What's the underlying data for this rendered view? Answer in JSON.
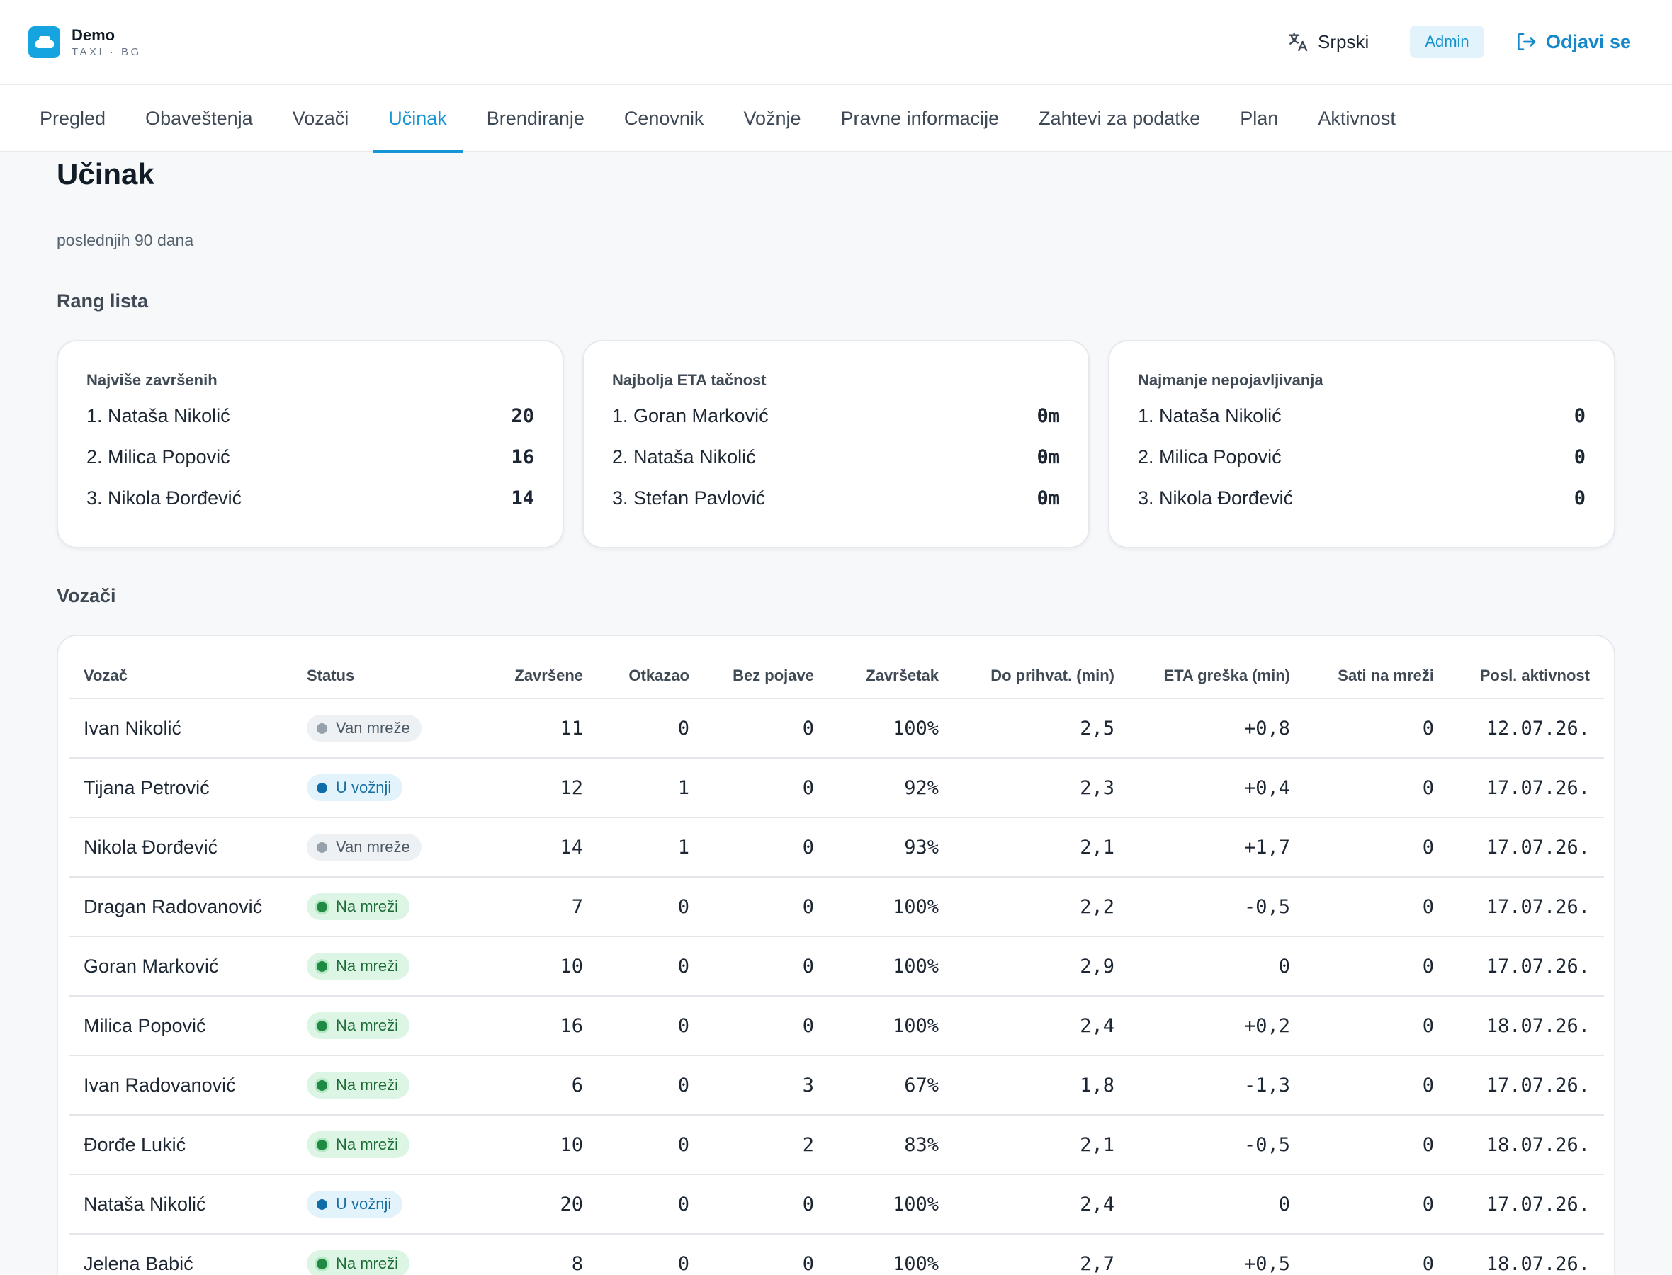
{
  "brand": {
    "name": "Demo",
    "sub": "TAXI · BG"
  },
  "header": {
    "language": "Srpski",
    "role_badge": "Admin",
    "logout_label": "Odjavi se"
  },
  "tabs": [
    {
      "label": "Pregled"
    },
    {
      "label": "Obaveštenja"
    },
    {
      "label": "Vozači"
    },
    {
      "label": "Učinak",
      "active": true
    },
    {
      "label": "Brendiranje"
    },
    {
      "label": "Cenovnik"
    },
    {
      "label": "Vožnje"
    },
    {
      "label": "Pravne informacije"
    },
    {
      "label": "Zahtevi za podatke"
    },
    {
      "label": "Plan"
    },
    {
      "label": "Aktivnost"
    }
  ],
  "page": {
    "title": "Učinak",
    "subtitle": "poslednjih 90 dana",
    "leaderboard_heading": "Rang lista",
    "drivers_heading": "Vozači"
  },
  "leaderboards": [
    {
      "title": "Najviše završenih",
      "rows": [
        {
          "name": "1. Nataša Nikolić",
          "value": "20"
        },
        {
          "name": "2. Milica Popović",
          "value": "16"
        },
        {
          "name": "3. Nikola Đorđević",
          "value": "14"
        }
      ]
    },
    {
      "title": "Najbolja ETA tačnost",
      "rows": [
        {
          "name": "1. Goran Marković",
          "value": "0m"
        },
        {
          "name": "2. Nataša Nikolić",
          "value": "0m"
        },
        {
          "name": "3. Stefan Pavlović",
          "value": "0m"
        }
      ]
    },
    {
      "title": "Najmanje nepojavljivanja",
      "rows": [
        {
          "name": "1. Nataša Nikolić",
          "value": "0"
        },
        {
          "name": "2. Milica Popović",
          "value": "0"
        },
        {
          "name": "3. Nikola Đorđević",
          "value": "0"
        }
      ]
    }
  ],
  "table": {
    "columns": [
      "Vozač",
      "Status",
      "Završene",
      "Otkazao",
      "Bez pojave",
      "Završetak",
      "Do prihvat. (min)",
      "ETA greška (min)",
      "Sati na mreži",
      "Posl. aktivnost"
    ],
    "status_colors": {
      "offline": "#97a1ab",
      "in_ride": "#0f6ea8",
      "online": "#1f8a43"
    },
    "rows": [
      {
        "driver": "Ivan Nikolić",
        "status": "Van mreže",
        "status_kind": "offline",
        "completed": "11",
        "cancelled": "0",
        "no_show": "0",
        "completion": "100%",
        "accept_min": "2,5",
        "eta_err": "+0,8",
        "hours": "0",
        "last": "12.07.26."
      },
      {
        "driver": "Tijana Petrović",
        "status": "U vožnji",
        "status_kind": "in_ride",
        "completed": "12",
        "cancelled": "1",
        "no_show": "0",
        "completion": "92%",
        "accept_min": "2,3",
        "eta_err": "+0,4",
        "hours": "0",
        "last": "17.07.26."
      },
      {
        "driver": "Nikola Đorđević",
        "status": "Van mreže",
        "status_kind": "offline",
        "completed": "14",
        "cancelled": "1",
        "no_show": "0",
        "completion": "93%",
        "accept_min": "2,1",
        "eta_err": "+1,7",
        "hours": "0",
        "last": "17.07.26."
      },
      {
        "driver": "Dragan Radovanović",
        "status": "Na mreži",
        "status_kind": "online",
        "completed": "7",
        "cancelled": "0",
        "no_show": "0",
        "completion": "100%",
        "accept_min": "2,2",
        "eta_err": "-0,5",
        "hours": "0",
        "last": "17.07.26."
      },
      {
        "driver": "Goran Marković",
        "status": "Na mreži",
        "status_kind": "online",
        "completed": "10",
        "cancelled": "0",
        "no_show": "0",
        "completion": "100%",
        "accept_min": "2,9",
        "eta_err": "0",
        "hours": "0",
        "last": "17.07.26."
      },
      {
        "driver": "Milica Popović",
        "status": "Na mreži",
        "status_kind": "online",
        "completed": "16",
        "cancelled": "0",
        "no_show": "0",
        "completion": "100%",
        "accept_min": "2,4",
        "eta_err": "+0,2",
        "hours": "0",
        "last": "18.07.26."
      },
      {
        "driver": "Ivan Radovanović",
        "status": "Na mreži",
        "status_kind": "online",
        "completed": "6",
        "cancelled": "0",
        "no_show": "3",
        "completion": "67%",
        "accept_min": "1,8",
        "eta_err": "-1,3",
        "hours": "0",
        "last": "17.07.26."
      },
      {
        "driver": "Đorđe Lukić",
        "status": "Na mreži",
        "status_kind": "online",
        "completed": "10",
        "cancelled": "0",
        "no_show": "2",
        "completion": "83%",
        "accept_min": "2,1",
        "eta_err": "-0,5",
        "hours": "0",
        "last": "18.07.26."
      },
      {
        "driver": "Nataša Nikolić",
        "status": "U vožnji",
        "status_kind": "in_ride",
        "completed": "20",
        "cancelled": "0",
        "no_show": "0",
        "completion": "100%",
        "accept_min": "2,4",
        "eta_err": "0",
        "hours": "0",
        "last": "17.07.26."
      },
      {
        "driver": "Jelena Babić",
        "status": "Na mreži",
        "status_kind": "online",
        "completed": "8",
        "cancelled": "0",
        "no_show": "0",
        "completion": "100%",
        "accept_min": "2,7",
        "eta_err": "+0,5",
        "hours": "0",
        "last": "18.07.26."
      }
    ]
  }
}
